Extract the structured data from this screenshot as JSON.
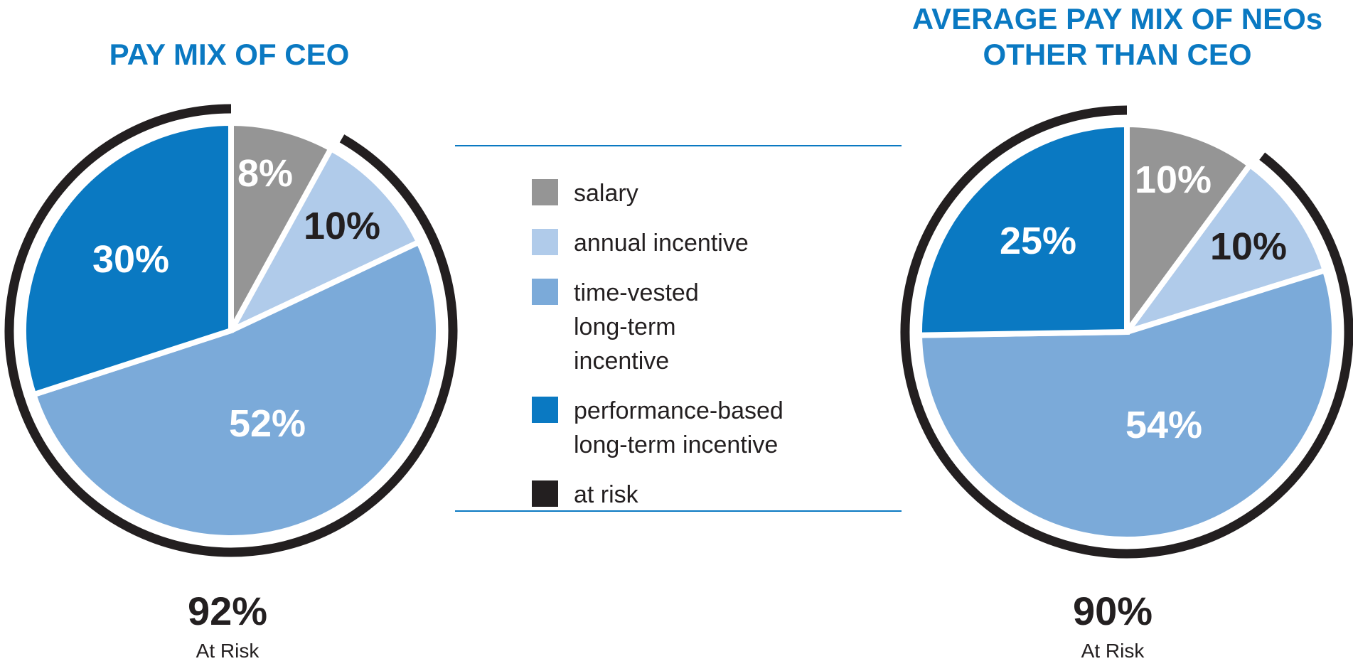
{
  "legend": [
    {
      "key": "salary",
      "label": "salary",
      "color": "#959595"
    },
    {
      "key": "annual",
      "label": "annual incentive",
      "color": "#b0cbea"
    },
    {
      "key": "time_vested",
      "label": "time-vested long-term incentive",
      "color": "#7baad9"
    },
    {
      "key": "performance",
      "label": "performance-based long-term incentive",
      "color": "#0a79c2"
    },
    {
      "key": "at_risk",
      "label": "at risk",
      "color": "#231f20"
    }
  ],
  "chart_data": [
    {
      "type": "pie",
      "title": "PAY MIX OF CEO",
      "categories": [
        "salary",
        "annual incentive",
        "time-vested long-term incentive",
        "performance-based long-term incentive"
      ],
      "values": [
        8,
        10,
        52,
        30
      ],
      "labels": [
        "8%",
        "10%",
        "52%",
        "30%"
      ],
      "at_risk": {
        "value": 92,
        "label_value": "92%",
        "label_text": "At Risk"
      }
    },
    {
      "type": "pie",
      "title": "AVERAGE PAY MIX OF NEOs OTHER THAN CEO",
      "categories": [
        "salary",
        "annual incentive",
        "time-vested long-term incentive",
        "performance-based long-term incentive"
      ],
      "values": [
        10,
        10,
        54,
        25
      ],
      "labels": [
        "10%",
        "10%",
        "54%",
        "25%"
      ],
      "at_risk": {
        "value": 90,
        "label_value": "90%",
        "label_text": "At Risk"
      }
    }
  ]
}
